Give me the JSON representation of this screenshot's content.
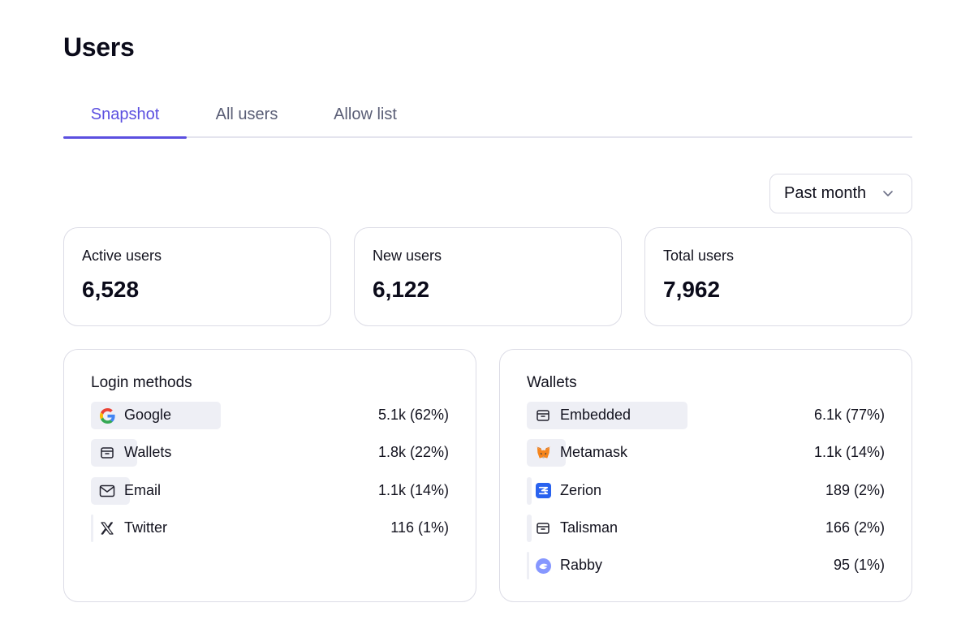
{
  "page": {
    "title": "Users"
  },
  "tabs": [
    {
      "label": "Snapshot",
      "active": true
    },
    {
      "label": "All users",
      "active": false
    },
    {
      "label": "Allow list",
      "active": false
    }
  ],
  "range_select": {
    "value": "Past month",
    "icon": "chevron-down-icon"
  },
  "stats": [
    {
      "label": "Active users",
      "value": "6,528"
    },
    {
      "label": "New users",
      "value": "6,122"
    },
    {
      "label": "Total users",
      "value": "7,962"
    }
  ],
  "login_methods": {
    "title": "Login methods",
    "bar_color": "#eeeff5",
    "items": [
      {
        "name": "Google",
        "count": "5.1k (62%)",
        "share": 0.62,
        "icon": "google-icon"
      },
      {
        "name": "Wallets",
        "count": "1.8k (22%)",
        "share": 0.22,
        "icon": "wallet-icon"
      },
      {
        "name": "Email",
        "count": "1.1k (14%)",
        "share": 0.14,
        "icon": "mail-icon"
      },
      {
        "name": "Twitter",
        "count": "116 (1%)",
        "share": 0.01,
        "icon": "x-twitter-icon"
      }
    ]
  },
  "wallets": {
    "title": "Wallets",
    "bar_color": "#eeeff5",
    "items": [
      {
        "name": "Embedded",
        "count": "6.1k (77%)",
        "share": 0.77,
        "icon": "wallet-icon"
      },
      {
        "name": "Metamask",
        "count": "1.1k (14%)",
        "share": 0.14,
        "icon": "metamask-fox-icon"
      },
      {
        "name": "Zerion",
        "count": "189 (2%)",
        "share": 0.02,
        "icon": "zerion-icon"
      },
      {
        "name": "Talisman",
        "count": "166 (2%)",
        "share": 0.02,
        "icon": "wallet-icon"
      },
      {
        "name": "Rabby",
        "count": "95 (1%)",
        "share": 0.01,
        "icon": "rabby-icon"
      }
    ]
  },
  "colors": {
    "accent": "#5b4fe0",
    "border": "#dcdce6",
    "tab_inactive": "#5a5e76"
  }
}
